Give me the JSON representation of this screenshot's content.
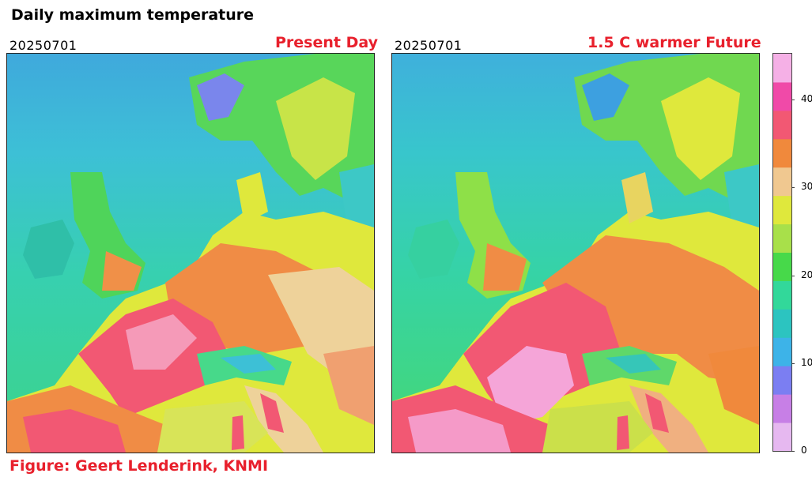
{
  "title": "Daily maximum temperature",
  "panels": [
    {
      "date": "20250701",
      "scenario": "Present Day"
    },
    {
      "date": "20250701",
      "scenario": "1.5 C warmer Future"
    }
  ],
  "colorbar": {
    "ticks": [
      "0",
      "10",
      "20",
      "30",
      "40"
    ],
    "min": 0,
    "max": 45,
    "colors": [
      "#e6b8f0",
      "#c77fe6",
      "#7b7ef2",
      "#3db3e8",
      "#2cc4c0",
      "#32d89a",
      "#47d94a",
      "#a8e04a",
      "#dfe83c",
      "#f0c890",
      "#f0893c",
      "#f25873",
      "#f04aa8",
      "#f5b0e6"
    ]
  },
  "credit": "Figure: Geert Lenderink, KNMI"
}
